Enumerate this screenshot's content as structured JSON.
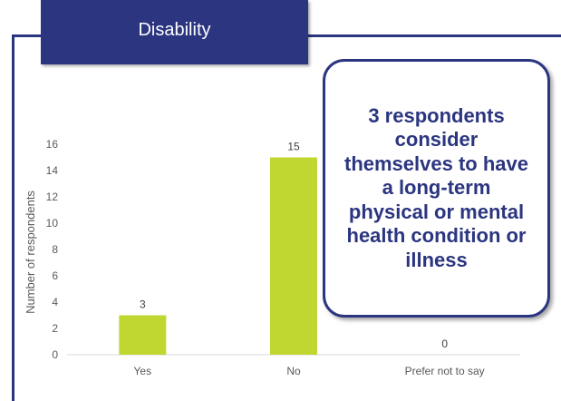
{
  "header": {
    "title": "Disability"
  },
  "callout": {
    "text": "3 respondents consider themselves to have a long-term physical or mental health condition or illness"
  },
  "colors": {
    "brand": "#2b3580",
    "bar": "#bfd730",
    "axis_text": "#595959"
  },
  "chart_data": {
    "type": "bar",
    "categories": [
      "Yes",
      "No",
      "Prefer not to say"
    ],
    "values": [
      3,
      15,
      0
    ],
    "title": "",
    "xlabel": "",
    "ylabel": "Number of respondents",
    "ylim": [
      0,
      16
    ],
    "yticks": [
      0,
      2,
      4,
      6,
      8,
      10,
      12,
      14,
      16
    ],
    "grid": false,
    "data_labels": true
  }
}
